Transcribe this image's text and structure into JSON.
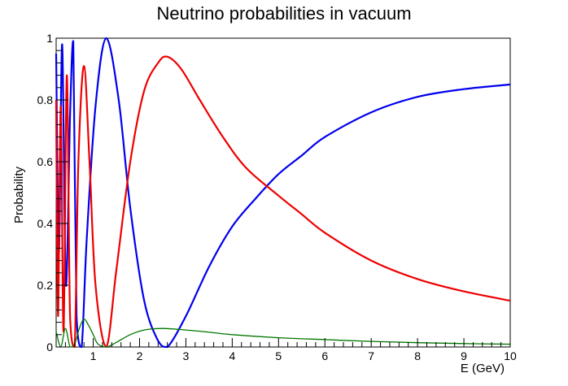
{
  "chart_data": {
    "type": "line",
    "title": "Neutrino probabilities in vacuum",
    "xlabel": "E (GeV)",
    "ylabel": "Probability",
    "xlim": [
      0.2,
      10
    ],
    "ylim": [
      0,
      1
    ],
    "x_ticks": [
      1,
      2,
      3,
      4,
      5,
      6,
      7,
      8,
      9,
      10
    ],
    "y_ticks": [
      0,
      0.2,
      0.4,
      0.6,
      0.8,
      1
    ],
    "x_tick_labels": [
      "1",
      "2",
      "3",
      "4",
      "5",
      "6",
      "7",
      "8",
      "9",
      "10"
    ],
    "y_tick_labels": [
      "0",
      "0.2",
      "0.4",
      "0.6",
      "0.8",
      "1"
    ],
    "grid": false,
    "legend": "none",
    "series": [
      {
        "color": "#0000ee",
        "x": [
          0.2,
          0.26,
          0.33,
          0.41,
          0.5,
          0.57,
          0.64,
          0.75,
          0.86,
          1.05,
          1.28,
          1.55,
          1.8,
          2.1,
          2.4,
          2.6,
          3.0,
          3.5,
          4.0,
          4.5,
          5.0,
          5.5,
          6.0,
          7.0,
          8.0,
          9.0,
          10.0
        ],
        "values": [
          0.95,
          0.3,
          0.98,
          0.2,
          0.75,
          0.99,
          0.1,
          0.0,
          0.35,
          0.78,
          1.0,
          0.8,
          0.45,
          0.15,
          0.02,
          0.0,
          0.1,
          0.26,
          0.39,
          0.48,
          0.56,
          0.62,
          0.68,
          0.76,
          0.81,
          0.835,
          0.85
        ]
      },
      {
        "color": "#ee0000",
        "x": [
          0.2,
          0.24,
          0.3,
          0.36,
          0.43,
          0.5,
          0.6,
          0.68,
          0.8,
          0.92,
          1.05,
          1.28,
          1.5,
          1.8,
          2.1,
          2.4,
          2.6,
          2.9,
          3.3,
          3.8,
          4.3,
          5.0,
          5.5,
          6.0,
          7.0,
          8.0,
          9.0,
          10.0
        ],
        "values": [
          0.8,
          0.1,
          0.78,
          0.05,
          0.88,
          0.1,
          0.0,
          0.6,
          0.91,
          0.6,
          0.2,
          0.0,
          0.25,
          0.6,
          0.83,
          0.92,
          0.94,
          0.9,
          0.8,
          0.68,
          0.58,
          0.49,
          0.43,
          0.37,
          0.28,
          0.22,
          0.18,
          0.15
        ]
      },
      {
        "color": "#007700",
        "x": [
          0.2,
          0.3,
          0.4,
          0.5,
          0.6,
          0.7,
          0.8,
          0.9,
          1.0,
          1.1,
          1.28,
          1.5,
          1.8,
          2.1,
          2.5,
          3.0,
          3.5,
          4.0,
          5.0,
          6.0,
          7.0,
          8.0,
          9.0,
          10.0
        ],
        "values": [
          0.05,
          0.0,
          0.06,
          0.0,
          0.01,
          0.06,
          0.09,
          0.07,
          0.04,
          0.01,
          0.0,
          0.015,
          0.04,
          0.055,
          0.06,
          0.055,
          0.048,
          0.04,
          0.03,
          0.024,
          0.018,
          0.014,
          0.011,
          0.009
        ]
      }
    ]
  }
}
